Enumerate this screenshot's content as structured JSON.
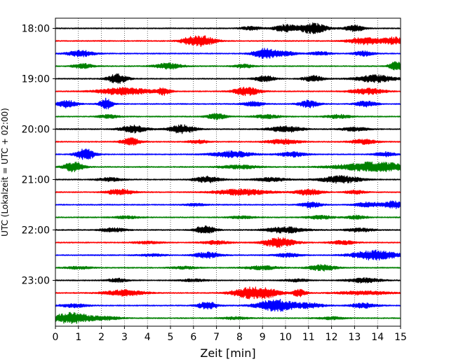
{
  "chart_data": {
    "type": "line",
    "xlabel": "Zeit  [min]",
    "ylabel": "UTC (Lokalzeit = UTC + 02:00)",
    "xlim": [
      0,
      15
    ],
    "x_ticks": [
      0,
      1,
      2,
      3,
      4,
      5,
      6,
      7,
      8,
      9,
      10,
      11,
      12,
      13,
      14,
      15
    ],
    "x_tick_labels": [
      "0",
      "1",
      "2",
      "3",
      "4",
      "5",
      "6",
      "7",
      "8",
      "9",
      "10",
      "11",
      "12",
      "13",
      "14",
      "15"
    ],
    "y_tick_labels": [
      "18:00",
      "19:00",
      "20:00",
      "21:00",
      "22:00",
      "23:00"
    ],
    "trace_interval_minutes": 15,
    "start_time": "18:00",
    "end_time": "24:00",
    "grid": "vertical-dotted",
    "trace_colors": [
      "#000000",
      "#ff0000",
      "#0000ff",
      "#008000"
    ],
    "series": [
      {
        "start": "18:00",
        "bursts": [
          [
            10.0,
            0.6,
            0.35
          ],
          [
            11.2,
            0.9,
            0.4
          ],
          [
            13.0,
            0.5,
            0.3
          ],
          [
            8.5,
            0.3,
            0.3
          ]
        ]
      },
      {
        "start": "18:15",
        "bursts": [
          [
            6.4,
            0.8,
            0.4
          ],
          [
            5.8,
            0.4,
            0.3
          ],
          [
            13.5,
            0.6,
            0.5
          ],
          [
            14.7,
            0.6,
            0.3
          ]
        ]
      },
      {
        "start": "18:30",
        "bursts": [
          [
            1.1,
            0.5,
            0.4
          ],
          [
            9.1,
            0.9,
            0.35
          ],
          [
            10.0,
            0.4,
            0.3
          ],
          [
            11.5,
            0.3,
            0.3
          ],
          [
            13.4,
            0.4,
            0.3
          ]
        ]
      },
      {
        "start": "18:45",
        "bursts": [
          [
            1.2,
            0.4,
            0.3
          ],
          [
            4.9,
            0.5,
            0.4
          ],
          [
            8.2,
            0.3,
            0.3
          ],
          [
            14.8,
            0.8,
            0.2
          ]
        ]
      },
      {
        "start": "19:00",
        "bursts": [
          [
            2.7,
            0.8,
            0.3
          ],
          [
            9.1,
            0.5,
            0.3
          ],
          [
            11.2,
            0.5,
            0.3
          ],
          [
            13.9,
            0.6,
            0.6
          ]
        ]
      },
      {
        "start": "19:15",
        "bursts": [
          [
            3.0,
            0.6,
            0.8
          ],
          [
            4.7,
            0.6,
            0.2
          ],
          [
            8.3,
            0.7,
            0.4
          ],
          [
            13.6,
            0.5,
            0.5
          ]
        ]
      },
      {
        "start": "19:30",
        "bursts": [
          [
            0.5,
            0.6,
            0.3
          ],
          [
            2.2,
            0.9,
            0.2
          ],
          [
            8.6,
            0.4,
            0.3
          ],
          [
            11.0,
            0.6,
            0.3
          ],
          [
            13.5,
            0.5,
            0.3
          ]
        ]
      },
      {
        "start": "19:45",
        "bursts": [
          [
            2.3,
            0.3,
            0.3
          ],
          [
            7.0,
            0.5,
            0.3
          ],
          [
            9.2,
            0.3,
            0.4
          ],
          [
            12.3,
            0.3,
            0.4
          ]
        ]
      },
      {
        "start": "20:00",
        "bursts": [
          [
            3.4,
            0.6,
            0.4
          ],
          [
            5.5,
            0.7,
            0.4
          ],
          [
            10.0,
            0.5,
            0.5
          ],
          [
            13.0,
            0.3,
            0.4
          ]
        ]
      },
      {
        "start": "20:15",
        "bursts": [
          [
            3.3,
            0.6,
            0.3
          ],
          [
            6.2,
            0.3,
            0.3
          ],
          [
            9.9,
            0.4,
            0.5
          ],
          [
            13.4,
            0.4,
            0.4
          ]
        ]
      },
      {
        "start": "20:30",
        "bursts": [
          [
            1.3,
            0.9,
            0.3
          ],
          [
            7.7,
            0.5,
            0.6
          ],
          [
            10.3,
            0.4,
            0.4
          ],
          [
            14.3,
            0.4,
            0.3
          ]
        ]
      },
      {
        "start": "20:45",
        "bursts": [
          [
            0.8,
            0.8,
            0.3
          ],
          [
            8.0,
            0.3,
            0.6
          ],
          [
            13.9,
            0.8,
            1.1
          ]
        ]
      },
      {
        "start": "21:00",
        "bursts": [
          [
            2.4,
            0.3,
            0.4
          ],
          [
            6.6,
            0.5,
            0.4
          ],
          [
            9.4,
            0.3,
            0.5
          ],
          [
            12.4,
            0.6,
            0.6
          ]
        ]
      },
      {
        "start": "21:15",
        "bursts": [
          [
            2.8,
            0.5,
            0.4
          ],
          [
            8.1,
            0.5,
            0.8
          ],
          [
            11.0,
            0.5,
            0.4
          ],
          [
            13.0,
            0.3,
            0.3
          ]
        ]
      },
      {
        "start": "21:30",
        "bursts": [
          [
            6.1,
            0.2,
            0.3
          ],
          [
            11.1,
            0.5,
            0.3
          ],
          [
            13.6,
            0.4,
            0.4
          ],
          [
            14.7,
            0.6,
            0.3
          ]
        ]
      },
      {
        "start": "21:45",
        "bursts": [
          [
            3.1,
            0.2,
            0.4
          ],
          [
            8.1,
            0.2,
            0.4
          ],
          [
            11.5,
            0.3,
            0.4
          ],
          [
            13.1,
            0.3,
            0.3
          ]
        ]
      },
      {
        "start": "22:00",
        "bursts": [
          [
            2.5,
            0.3,
            0.4
          ],
          [
            6.5,
            0.7,
            0.3
          ],
          [
            10.0,
            0.5,
            0.6
          ],
          [
            13.2,
            0.3,
            0.4
          ]
        ]
      },
      {
        "start": "22:15",
        "bursts": [
          [
            4.0,
            0.2,
            0.4
          ],
          [
            7.0,
            0.3,
            0.4
          ],
          [
            9.7,
            0.8,
            0.5
          ],
          [
            12.5,
            0.3,
            0.4
          ]
        ]
      },
      {
        "start": "22:30",
        "bursts": [
          [
            4.2,
            0.2,
            0.4
          ],
          [
            6.6,
            0.5,
            0.4
          ],
          [
            10.1,
            0.3,
            0.4
          ],
          [
            13.9,
            0.8,
            0.7
          ]
        ]
      },
      {
        "start": "22:45",
        "bursts": [
          [
            1.0,
            0.2,
            0.4
          ],
          [
            5.6,
            0.2,
            0.4
          ],
          [
            9.0,
            0.3,
            0.5
          ],
          [
            11.6,
            0.5,
            0.4
          ]
        ]
      },
      {
        "start": "23:00",
        "bursts": [
          [
            2.7,
            0.3,
            0.3
          ],
          [
            6.0,
            0.2,
            0.4
          ],
          [
            10.5,
            0.2,
            0.4
          ],
          [
            13.4,
            0.4,
            0.5
          ]
        ]
      },
      {
        "start": "23:15",
        "bursts": [
          [
            3.0,
            0.5,
            0.6
          ],
          [
            8.4,
            0.9,
            0.5
          ],
          [
            9.3,
            0.6,
            0.4
          ],
          [
            10.6,
            0.6,
            0.2
          ],
          [
            13.4,
            0.3,
            0.8
          ]
        ]
      },
      {
        "start": "23:30",
        "bursts": [
          [
            0.8,
            0.3,
            0.4
          ],
          [
            6.6,
            0.6,
            0.3
          ],
          [
            9.6,
            1.0,
            0.6
          ],
          [
            11.1,
            0.4,
            0.4
          ],
          [
            13.4,
            0.4,
            0.4
          ]
        ]
      },
      {
        "start": "23:45",
        "bursts": [
          [
            0.7,
            0.9,
            0.6
          ],
          [
            2.2,
            0.3,
            0.4
          ],
          [
            7.8,
            0.2,
            0.4
          ],
          [
            12.0,
            0.2,
            0.4
          ]
        ]
      }
    ]
  }
}
